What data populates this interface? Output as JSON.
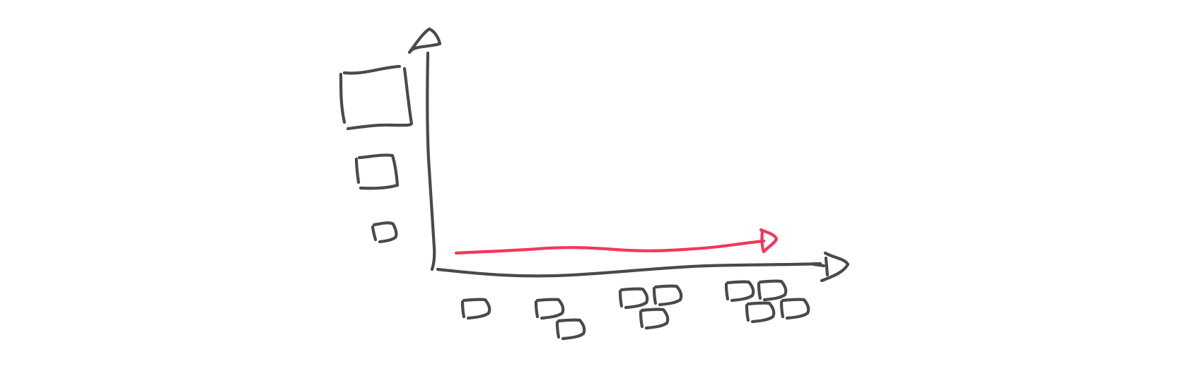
{
  "colors": {
    "background": "#ffffff",
    "ink": "#4a4a4a",
    "accent": "#f4365a"
  },
  "icons": {
    "y_axis_head": "arrow-up-icon",
    "x_axis_head": "arrow-right-icon",
    "trend_head": "arrow-right-icon",
    "small_glyph": "d-glyph-icon"
  },
  "y_axis_legend": {
    "sizes": [
      "large",
      "medium",
      "small"
    ]
  },
  "x_axis_groups": [
    {
      "group": 1,
      "glyph_count": 1
    },
    {
      "group": 2,
      "glyph_count": 2
    },
    {
      "group": 3,
      "glyph_count": 3
    },
    {
      "group": 4,
      "glyph_count": 4
    }
  ],
  "trend": {
    "direction": "flat"
  }
}
